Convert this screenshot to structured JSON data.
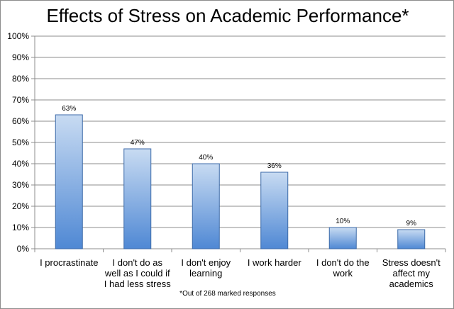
{
  "chart_data": {
    "type": "bar",
    "title": "Effects of Stress on Academic Performance*",
    "note": "*Out of 268 marked responses",
    "categories": [
      "I procrastinate",
      "I don't do as well as I could if I had less stress",
      "I don't enjoy learning",
      "I work harder",
      "I don't do the work",
      "Stress doesn't affect my academics"
    ],
    "category_lines": [
      [
        "I procrastinate"
      ],
      [
        "I don't do as",
        "well as I could if",
        "I had less stress"
      ],
      [
        "I don't enjoy",
        "learning"
      ],
      [
        "I work harder"
      ],
      [
        "I don't do the",
        "work"
      ],
      [
        "Stress doesn't",
        "affect my",
        "academics"
      ]
    ],
    "values": [
      63,
      47,
      40,
      36,
      10,
      9
    ],
    "data_labels": [
      "63%",
      "47%",
      "40%",
      "36%",
      "10%",
      "9%"
    ],
    "yticks": [
      "0%",
      "10%",
      "20%",
      "30%",
      "40%",
      "50%",
      "60%",
      "70%",
      "80%",
      "90%",
      "100%"
    ],
    "ylim": [
      0,
      100
    ],
    "grid": true,
    "legend": "none",
    "colors": {
      "bar_top": "#c8dbf2",
      "bar_bottom": "#4f88d4",
      "bar_edge": "#3c6aa8",
      "grid": "#8c8c8c"
    }
  }
}
